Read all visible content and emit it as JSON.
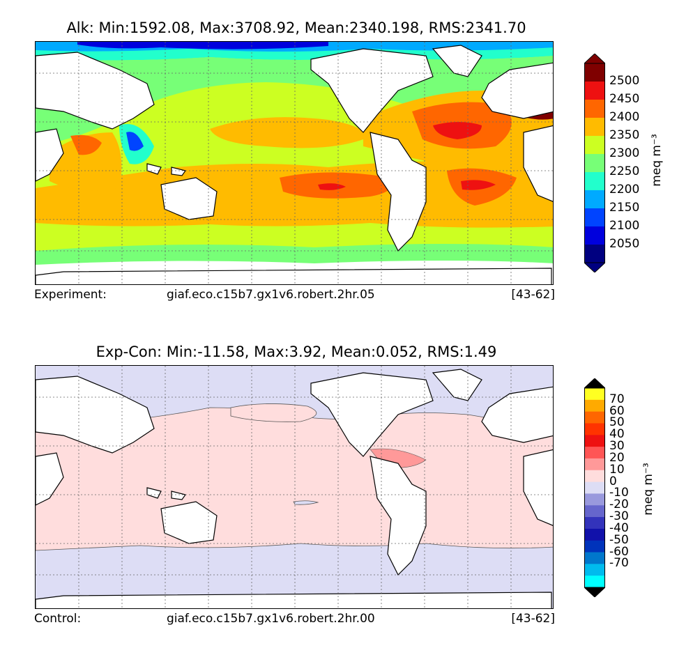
{
  "top_panel": {
    "title": "Alk: Min:1592.08, Max:3708.92, Mean:2340.198, RMS:2341.70",
    "footer_label": "Experiment:",
    "footer_run": "giaf.eco.c15b7.gx1v6.robert.2hr.05",
    "footer_years": "[43-62]",
    "colorbar": {
      "units": "meq m⁻³",
      "ticks": [
        "2500",
        "2450",
        "2400",
        "2350",
        "2300",
        "2250",
        "2200",
        "2150",
        "2100",
        "2050"
      ],
      "colors": [
        "#7f0000",
        "#ee1111",
        "#ff6600",
        "#ffbb00",
        "#ccff22",
        "#77ff77",
        "#22ffcc",
        "#00aaff",
        "#0044ff",
        "#0000dd",
        "#000080"
      ],
      "over_color": "#7f0000",
      "under_color": "#000080"
    }
  },
  "bottom_panel": {
    "title": "Exp-Con: Min:-11.58, Max:3.92, Mean:0.052, RMS:1.49",
    "footer_label": "Control:",
    "footer_run": "giaf.eco.c15b7.gx1v6.robert.2hr.00",
    "footer_years": "[43-62]",
    "colorbar": {
      "units": "meq m⁻³",
      "ticks": [
        "70",
        "60",
        "50",
        "40",
        "30",
        "20",
        "10",
        "0",
        "-10",
        "-20",
        "-30",
        "-40",
        "-50",
        "-60",
        "-70"
      ],
      "colors": [
        "#ffff22",
        "#ffaa00",
        "#ff6600",
        "#ff3300",
        "#ee1111",
        "#ff5555",
        "#ff9999",
        "#ffdddd",
        "#ddddf5",
        "#9999dd",
        "#6666cc",
        "#3333bb",
        "#1111aa",
        "#0033bb",
        "#0077cc",
        "#00bbee",
        "#00ffff"
      ],
      "over_color": "#000000",
      "under_color": "#000000"
    }
  }
}
